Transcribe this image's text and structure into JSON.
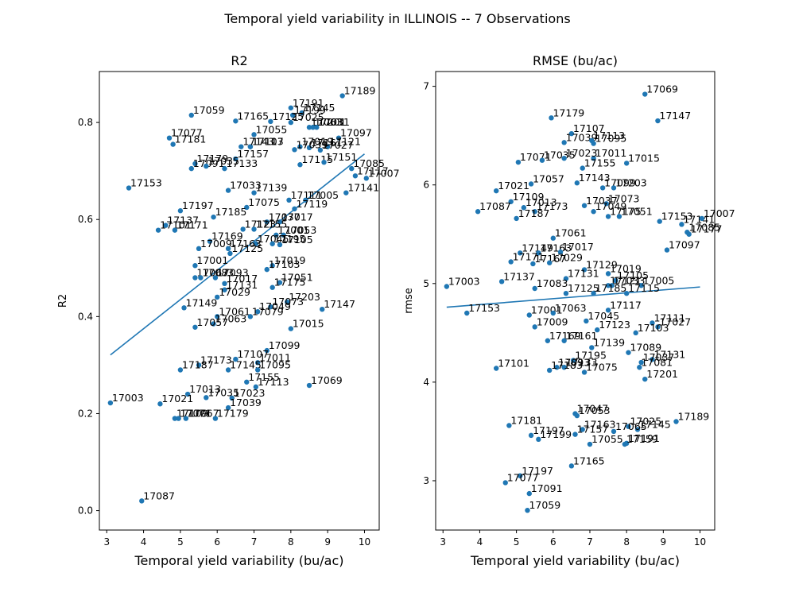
{
  "figure": {
    "suptitle": "Temporal yield variability in ILLINOIS -- 7 Observations"
  },
  "colors": {
    "marker": "#1f77b4",
    "line": "#1f77b4",
    "axis": "#000000",
    "background": "#ffffff"
  },
  "chart_data": [
    {
      "type": "scatter",
      "title": "R2",
      "xlabel": "Temporal yield variability (bu/ac)",
      "ylabel": "R2",
      "xlim": [
        2.8,
        10.4
      ],
      "ylim": [
        -0.04,
        0.905
      ],
      "xticks": [
        3,
        4,
        5,
        6,
        7,
        8,
        9,
        10
      ],
      "yticks": [
        0.0,
        0.2,
        0.4,
        0.6,
        0.8
      ],
      "ytick_labels": [
        "0.0",
        "0.2",
        "0.4",
        "0.6",
        "0.8"
      ],
      "grid": false,
      "trend_line": {
        "x": [
          3.1,
          10.0
        ],
        "y": [
          0.321,
          0.735
        ]
      },
      "points": [
        {
          "label": "17189",
          "x": 9.4,
          "y": 0.855
        },
        {
          "label": "17059",
          "x": 5.3,
          "y": 0.815
        },
        {
          "label": "17191",
          "x": 8.0,
          "y": 0.83
        },
        {
          "label": "17145",
          "x": 8.3,
          "y": 0.82
        },
        {
          "label": "17199",
          "x": 8.05,
          "y": 0.815
        },
        {
          "label": "17165",
          "x": 6.5,
          "y": 0.803
        },
        {
          "label": "17125",
          "x": 7.45,
          "y": 0.802
        },
        {
          "label": "17025",
          "x": 8.0,
          "y": 0.8
        },
        {
          "label": "17063",
          "x": 8.5,
          "y": 0.79
        },
        {
          "label": "17201",
          "x": 8.6,
          "y": 0.79
        },
        {
          "label": "17031",
          "x": 8.7,
          "y": 0.79
        },
        {
          "label": "17055",
          "x": 7.0,
          "y": 0.775
        },
        {
          "label": "17097",
          "x": 9.3,
          "y": 0.768
        },
        {
          "label": "17077",
          "x": 4.7,
          "y": 0.768
        },
        {
          "label": "17181",
          "x": 4.8,
          "y": 0.755
        },
        {
          "label": "17121",
          "x": 9.0,
          "y": 0.75
        },
        {
          "label": "17107",
          "x": 6.9,
          "y": 0.75
        },
        {
          "label": "17113",
          "x": 6.9,
          "y": 0.75
        },
        {
          "label": "17143",
          "x": 6.65,
          "y": 0.75
        },
        {
          "label": "17019",
          "x": 8.25,
          "y": 0.75
        },
        {
          "label": "17161",
          "x": 8.5,
          "y": 0.748
        },
        {
          "label": "17039",
          "x": 8.1,
          "y": 0.744
        },
        {
          "label": "17027",
          "x": 8.8,
          "y": 0.743
        },
        {
          "label": "17157",
          "x": 6.5,
          "y": 0.725
        },
        {
          "label": "17179",
          "x": 5.4,
          "y": 0.715
        },
        {
          "label": "17115",
          "x": 8.25,
          "y": 0.713
        },
        {
          "label": "17151",
          "x": 8.9,
          "y": 0.718
        },
        {
          "label": "17085",
          "x": 9.65,
          "y": 0.705
        },
        {
          "label": "17091",
          "x": 5.3,
          "y": 0.705
        },
        {
          "label": "17035",
          "x": 5.7,
          "y": 0.71
        },
        {
          "label": "17133",
          "x": 6.2,
          "y": 0.705
        },
        {
          "label": "17117",
          "x": 9.75,
          "y": 0.69
        },
        {
          "label": "17007",
          "x": 10.05,
          "y": 0.685
        },
        {
          "label": "17153",
          "x": 3.6,
          "y": 0.665
        },
        {
          "label": "17033",
          "x": 6.3,
          "y": 0.66
        },
        {
          "label": "17139",
          "x": 7.0,
          "y": 0.655
        },
        {
          "label": "17141",
          "x": 9.5,
          "y": 0.655
        },
        {
          "label": "17111",
          "x": 7.95,
          "y": 0.64
        },
        {
          "label": "17005",
          "x": 8.4,
          "y": 0.64
        },
        {
          "label": "17075",
          "x": 6.8,
          "y": 0.625
        },
        {
          "label": "17119",
          "x": 8.1,
          "y": 0.622
        },
        {
          "label": "17197",
          "x": 5.0,
          "y": 0.618
        },
        {
          "label": "17185",
          "x": 5.9,
          "y": 0.605
        },
        {
          "label": "17037",
          "x": 7.35,
          "y": 0.595
        },
        {
          "label": "17017",
          "x": 7.7,
          "y": 0.595
        },
        {
          "label": "17137",
          "x": 4.6,
          "y": 0.588
        },
        {
          "label": "17101",
          "x": 4.4,
          "y": 0.578
        },
        {
          "label": "17171",
          "x": 4.85,
          "y": 0.578
        },
        {
          "label": "17123",
          "x": 6.7,
          "y": 0.58
        },
        {
          "label": "17155",
          "x": 7.0,
          "y": 0.58
        },
        {
          "label": "17001",
          "x": 7.6,
          "y": 0.568
        },
        {
          "label": "17053",
          "x": 7.8,
          "y": 0.568
        },
        {
          "label": "17169",
          "x": 5.8,
          "y": 0.555
        },
        {
          "label": "17045",
          "x": 7.05,
          "y": 0.55
        },
        {
          "label": "17195",
          "x": 7.5,
          "y": 0.55
        },
        {
          "label": "17105",
          "x": 7.7,
          "y": 0.548
        },
        {
          "label": "17009",
          "x": 5.5,
          "y": 0.54
        },
        {
          "label": "17163",
          "x": 6.3,
          "y": 0.54
        },
        {
          "label": "17125b",
          "x": 6.35,
          "y": 0.53
        },
        {
          "label": "17001",
          "x": 5.4,
          "y": 0.505
        },
        {
          "label": "17019",
          "x": 7.5,
          "y": 0.505
        },
        {
          "label": "17103",
          "x": 7.35,
          "y": 0.497
        },
        {
          "label": "17067",
          "x": 5.4,
          "y": 0.48
        },
        {
          "label": "17083",
          "x": 5.55,
          "y": 0.48
        },
        {
          "label": "17093",
          "x": 5.95,
          "y": 0.48
        },
        {
          "label": "17051",
          "x": 7.7,
          "y": 0.47
        },
        {
          "label": "17017b",
          "x": 6.2,
          "y": 0.468
        },
        {
          "label": "17131",
          "x": 6.2,
          "y": 0.455
        },
        {
          "label": "17175",
          "x": 7.5,
          "y": 0.46
        },
        {
          "label": "17029",
          "x": 6.0,
          "y": 0.44
        },
        {
          "label": "17203",
          "x": 7.9,
          "y": 0.43
        },
        {
          "label": "17073",
          "x": 7.45,
          "y": 0.42
        },
        {
          "label": "17149",
          "x": 5.1,
          "y": 0.418
        },
        {
          "label": "17147",
          "x": 8.85,
          "y": 0.415
        },
        {
          "label": "17049",
          "x": 7.1,
          "y": 0.41
        },
        {
          "label": "17061",
          "x": 6.0,
          "y": 0.4
        },
        {
          "label": "17079",
          "x": 6.9,
          "y": 0.4
        },
        {
          "label": "17063b",
          "x": 5.9,
          "y": 0.385
        },
        {
          "label": "17057",
          "x": 5.4,
          "y": 0.378
        },
        {
          "label": "17015",
          "x": 8.0,
          "y": 0.375
        },
        {
          "label": "17099",
          "x": 7.35,
          "y": 0.33
        },
        {
          "label": "17107b",
          "x": 6.5,
          "y": 0.312
        },
        {
          "label": "17011",
          "x": 7.1,
          "y": 0.305
        },
        {
          "label": "17173",
          "x": 5.5,
          "y": 0.3
        },
        {
          "label": "17145b",
          "x": 6.3,
          "y": 0.29
        },
        {
          "label": "17095",
          "x": 7.1,
          "y": 0.29
        },
        {
          "label": "17187",
          "x": 5.0,
          "y": 0.29
        },
        {
          "label": "17155b",
          "x": 6.8,
          "y": 0.265
        },
        {
          "label": "17069",
          "x": 8.5,
          "y": 0.258
        },
        {
          "label": "17113b",
          "x": 7.05,
          "y": 0.255
        },
        {
          "label": "17013",
          "x": 5.2,
          "y": 0.24
        },
        {
          "label": "17035b",
          "x": 5.7,
          "y": 0.233
        },
        {
          "label": "17023",
          "x": 6.4,
          "y": 0.232
        },
        {
          "label": "17003",
          "x": 3.1,
          "y": 0.222
        },
        {
          "label": "17021",
          "x": 4.45,
          "y": 0.22
        },
        {
          "label": "17039b",
          "x": 6.3,
          "y": 0.212
        },
        {
          "label": "17109",
          "x": 4.85,
          "y": 0.19
        },
        {
          "label": "17071",
          "x": 4.95,
          "y": 0.19
        },
        {
          "label": "17067b",
          "x": 5.15,
          "y": 0.19
        },
        {
          "label": "17179b",
          "x": 5.95,
          "y": 0.19
        },
        {
          "label": "17087",
          "x": 3.95,
          "y": 0.02
        }
      ]
    },
    {
      "type": "scatter",
      "title": "RMSE (bu/ac)",
      "xlabel": "Temporal yield variability (bu/ac)",
      "ylabel": "rmse",
      "xlim": [
        2.8,
        10.4
      ],
      "ylim": [
        2.5,
        7.15
      ],
      "xticks": [
        3,
        4,
        5,
        6,
        7,
        8,
        9,
        10
      ],
      "yticks": [
        3,
        4,
        5,
        6,
        7
      ],
      "ytick_labels": [
        "3",
        "4",
        "5",
        "6",
        "7"
      ],
      "grid": false,
      "trend_line": {
        "x": [
          3.1,
          10.0
        ],
        "y": [
          4.76,
          4.965
        ]
      },
      "points": [
        {
          "label": "17069",
          "x": 8.5,
          "y": 6.92
        },
        {
          "label": "17147",
          "x": 8.85,
          "y": 6.65
        },
        {
          "label": "17179",
          "x": 5.95,
          "y": 6.68
        },
        {
          "label": "17107",
          "x": 6.5,
          "y": 6.52
        },
        {
          "label": "17039",
          "x": 6.3,
          "y": 6.43
        },
        {
          "label": "17113",
          "x": 7.05,
          "y": 6.45
        },
        {
          "label": "17095",
          "x": 7.1,
          "y": 6.42
        },
        {
          "label": "17011",
          "x": 7.1,
          "y": 6.27
        },
        {
          "label": "17015",
          "x": 8.0,
          "y": 6.22
        },
        {
          "label": "17071",
          "x": 5.05,
          "y": 6.23
        },
        {
          "label": "17035",
          "x": 5.7,
          "y": 6.25
        },
        {
          "label": "17023",
          "x": 6.3,
          "y": 6.27
        },
        {
          "label": "17155",
          "x": 6.8,
          "y": 6.17
        },
        {
          "label": "17021",
          "x": 4.45,
          "y": 5.94
        },
        {
          "label": "17057",
          "x": 5.4,
          "y": 6.01
        },
        {
          "label": "17143",
          "x": 6.65,
          "y": 6.02
        },
        {
          "label": "17099",
          "x": 7.35,
          "y": 5.97
        },
        {
          "label": "17203",
          "x": 7.65,
          "y": 5.97
        },
        {
          "label": "17109",
          "x": 4.85,
          "y": 5.83
        },
        {
          "label": "17087",
          "x": 3.95,
          "y": 5.73
        },
        {
          "label": "17013",
          "x": 5.2,
          "y": 5.77
        },
        {
          "label": "17173",
          "x": 5.5,
          "y": 5.73
        },
        {
          "label": "17187",
          "x": 5.0,
          "y": 5.66
        },
        {
          "label": "17037",
          "x": 6.85,
          "y": 5.79
        },
        {
          "label": "17073",
          "x": 7.45,
          "y": 5.81
        },
        {
          "label": "17049",
          "x": 7.1,
          "y": 5.73
        },
        {
          "label": "17175",
          "x": 7.5,
          "y": 5.68
        },
        {
          "label": "17051",
          "x": 7.8,
          "y": 5.68
        },
        {
          "label": "17153",
          "x": 8.9,
          "y": 5.63
        },
        {
          "label": "17141",
          "x": 9.5,
          "y": 5.6
        },
        {
          "label": "17007",
          "x": 10.05,
          "y": 5.66
        },
        {
          "label": "17085",
          "x": 9.65,
          "y": 5.52
        },
        {
          "label": "17177",
          "x": 9.7,
          "y": 5.5
        },
        {
          "label": "17061",
          "x": 6.0,
          "y": 5.46
        },
        {
          "label": "17097",
          "x": 9.1,
          "y": 5.34
        },
        {
          "label": "17149",
          "x": 5.1,
          "y": 5.31
        },
        {
          "label": "17163",
          "x": 5.6,
          "y": 5.31
        },
        {
          "label": "17017",
          "x": 6.2,
          "y": 5.32
        },
        {
          "label": "17171",
          "x": 4.85,
          "y": 5.22
        },
        {
          "label": "17167",
          "x": 5.45,
          "y": 5.2
        },
        {
          "label": "17029",
          "x": 5.9,
          "y": 5.21
        },
        {
          "label": "17129",
          "x": 6.85,
          "y": 5.14
        },
        {
          "label": "17019",
          "x": 7.5,
          "y": 5.1
        },
        {
          "label": "17131",
          "x": 6.35,
          "y": 5.05
        },
        {
          "label": "17105",
          "x": 7.7,
          "y": 5.03
        },
        {
          "label": "17137",
          "x": 4.6,
          "y": 5.02
        },
        {
          "label": "17003",
          "x": 3.1,
          "y": 4.97
        },
        {
          "label": "17083",
          "x": 5.5,
          "y": 4.95
        },
        {
          "label": "17121",
          "x": 7.5,
          "y": 4.98
        },
        {
          "label": "17033",
          "x": 7.6,
          "y": 4.98
        },
        {
          "label": "17005",
          "x": 8.4,
          "y": 4.98
        },
        {
          "label": "17125",
          "x": 6.35,
          "y": 4.9
        },
        {
          "label": "17185",
          "x": 7.1,
          "y": 4.9
        },
        {
          "label": "17115",
          "x": 8.0,
          "y": 4.9
        },
        {
          "label": "17117",
          "x": 7.5,
          "y": 4.73
        },
        {
          "label": "17153b",
          "x": 3.65,
          "y": 4.7
        },
        {
          "label": "17001",
          "x": 5.35,
          "y": 4.68
        },
        {
          "label": "17063",
          "x": 6.0,
          "y": 4.7
        },
        {
          "label": "17045",
          "x": 6.9,
          "y": 4.62
        },
        {
          "label": "17111",
          "x": 8.7,
          "y": 4.6
        },
        {
          "label": "17009",
          "x": 5.5,
          "y": 4.56
        },
        {
          "label": "17123",
          "x": 7.2,
          "y": 4.53
        },
        {
          "label": "17027",
          "x": 8.85,
          "y": 4.56
        },
        {
          "label": "17103",
          "x": 8.25,
          "y": 4.5
        },
        {
          "label": "17169",
          "x": 5.85,
          "y": 4.42
        },
        {
          "label": "17161",
          "x": 6.3,
          "y": 4.42
        },
        {
          "label": "17139",
          "x": 7.05,
          "y": 4.35
        },
        {
          "label": "17089",
          "x": 8.05,
          "y": 4.3
        },
        {
          "label": "17131b",
          "x": 8.7,
          "y": 4.23
        },
        {
          "label": "17037b",
          "x": 8.4,
          "y": 4.2
        },
        {
          "label": "17195",
          "x": 6.55,
          "y": 4.22
        },
        {
          "label": "17081",
          "x": 8.35,
          "y": 4.15
        },
        {
          "label": "17093",
          "x": 6.1,
          "y": 4.15
        },
        {
          "label": "17133",
          "x": 6.3,
          "y": 4.15
        },
        {
          "label": "17101",
          "x": 4.45,
          "y": 4.14
        },
        {
          "label": "17183",
          "x": 5.9,
          "y": 4.12
        },
        {
          "label": "17075",
          "x": 6.85,
          "y": 4.1
        },
        {
          "label": "17201",
          "x": 8.5,
          "y": 4.03
        },
        {
          "label": "17047",
          "x": 6.6,
          "y": 3.68
        },
        {
          "label": "17053b",
          "x": 6.65,
          "y": 3.66
        },
        {
          "label": "17181",
          "x": 4.8,
          "y": 3.56
        },
        {
          "label": "17189",
          "x": 9.35,
          "y": 3.6
        },
        {
          "label": "17025",
          "x": 8.05,
          "y": 3.55
        },
        {
          "label": "17145",
          "x": 8.3,
          "y": 3.52
        },
        {
          "label": "17163b",
          "x": 6.8,
          "y": 3.52
        },
        {
          "label": "17065",
          "x": 7.65,
          "y": 3.5
        },
        {
          "label": "17157",
          "x": 6.6,
          "y": 3.47
        },
        {
          "label": "17197b",
          "x": 5.4,
          "y": 3.46
        },
        {
          "label": "17199",
          "x": 5.6,
          "y": 3.42
        },
        {
          "label": "17055",
          "x": 7.0,
          "y": 3.37
        },
        {
          "label": "17191",
          "x": 8.0,
          "y": 3.38
        },
        {
          "label": "17159",
          "x": 7.95,
          "y": 3.37
        },
        {
          "label": "17165",
          "x": 6.5,
          "y": 3.15
        },
        {
          "label": "17197",
          "x": 5.1,
          "y": 3.05
        },
        {
          "label": "17077",
          "x": 4.7,
          "y": 2.98
        },
        {
          "label": "17091",
          "x": 5.35,
          "y": 2.87
        },
        {
          "label": "17059",
          "x": 5.3,
          "y": 2.7
        }
      ]
    }
  ]
}
